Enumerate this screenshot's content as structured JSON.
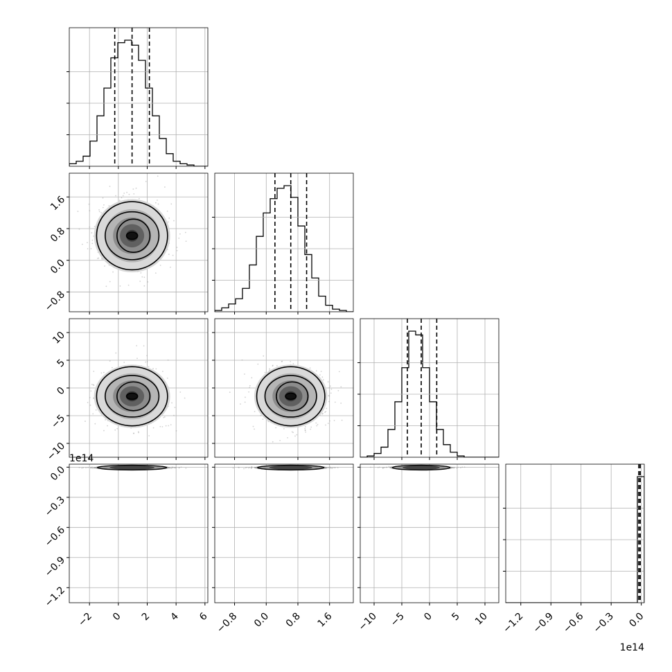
{
  "chart_data": {
    "type": "corner",
    "title": "",
    "params": [
      {
        "label": "",
        "range": [
          -3.4,
          6.2
        ],
        "ticks": [
          -2,
          0,
          2,
          4,
          6
        ],
        "tick_labels": [
          "−2",
          "0",
          "2",
          "4",
          "6"
        ],
        "mean": 0.95,
        "sd": 1.2,
        "quantiles": [
          -0.25,
          0.95,
          2.15
        ]
      },
      {
        "label": "",
        "range": [
          -1.3,
          2.2
        ],
        "ticks": [
          -0.8,
          0.0,
          0.8,
          1.6
        ],
        "tick_labels": [
          "−0.8",
          "0.0",
          "0.8",
          "1.6"
        ],
        "mean": 0.62,
        "sd": 0.42,
        "quantiles": [
          0.22,
          0.62,
          1.02
        ]
      },
      {
        "label": "",
        "range": [
          -12.5,
          12.5
        ],
        "ticks": [
          -10,
          -5,
          0,
          5,
          10
        ],
        "tick_labels": [
          "−10",
          "−5",
          "0",
          "5",
          "10"
        ],
        "mean": -1.5,
        "sd": 2.6,
        "quantiles": [
          -4.0,
          -1.5,
          1.3
        ]
      },
      {
        "label": "",
        "range": [
          -1.35,
          0.03
        ],
        "ticks": [
          -1.2,
          -0.9,
          -0.6,
          -0.3,
          0.0
        ],
        "tick_labels": [
          "−1.2",
          "−0.9",
          "−0.6",
          "−0.3",
          "0.0"
        ],
        "offset_text": "1e14",
        "mean": -0.003,
        "sd": 0.001,
        "quantiles": [
          -0.01,
          -0.005,
          0.0
        ]
      }
    ],
    "histograms": [
      {
        "param": 0,
        "bins": 20,
        "counts": [
          2,
          4,
          8,
          20,
          40,
          62,
          86,
          98,
          100,
          96,
          84,
          62,
          40,
          22,
          10,
          4,
          2,
          1,
          0,
          0
        ]
      },
      {
        "param": 1,
        "bins": 20,
        "counts": [
          1,
          3,
          6,
          10,
          18,
          36,
          58,
          76,
          87,
          95,
          97,
          88,
          66,
          44,
          26,
          12,
          5,
          2,
          1,
          0
        ]
      },
      {
        "param": 2,
        "bins": 20,
        "counts": [
          0,
          1,
          3,
          8,
          22,
          44,
          71,
          100,
          97,
          71,
          44,
          22,
          10,
          4,
          1,
          0,
          0,
          0,
          0,
          0
        ]
      },
      {
        "param": 3,
        "bins": 20,
        "counts": [
          0,
          0,
          0,
          0,
          0,
          0,
          0,
          0,
          0,
          0,
          0,
          0,
          0,
          0,
          0,
          0,
          0,
          0,
          0,
          100
        ]
      }
    ],
    "contour_levels": [
      "1-sigma",
      "2-sigma",
      "3-sigma"
    ],
    "quantile_lines": "dashed",
    "grid": true,
    "colors": {
      "line": "#000000",
      "grid": "#b0b0b0",
      "points": "#9a9a9a",
      "spine": "#000000"
    }
  }
}
